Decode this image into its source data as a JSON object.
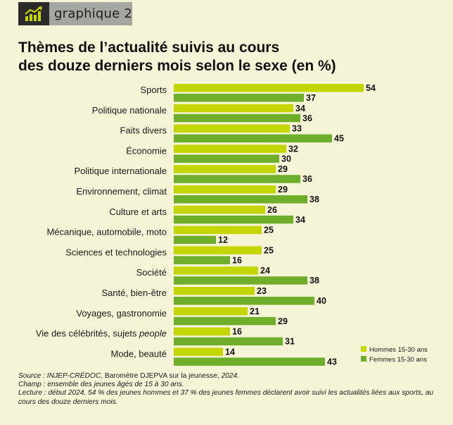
{
  "header": {
    "label": "graphique 2"
  },
  "title": {
    "line1": "Thèmes de l’actualité suivis au cours",
    "line2": "des douze derniers mois selon le sexe (en %)"
  },
  "colors": {
    "hommes": "#c3d600",
    "femmes": "#6fae2a",
    "icon": "#c3d600"
  },
  "chart_data": {
    "type": "bar",
    "orientation": "horizontal",
    "categories": [
      "Sports",
      "Politique nationale",
      "Faits divers",
      "Économie",
      "Politique internationale",
      "Environnement, climat",
      "Culture et arts",
      "Mécanique, automobile, moto",
      "Sciences et technologies",
      "Société",
      "Santé, bien-être",
      "Voyages, gastronomie",
      "Vie des célébrités, sujets people",
      "Mode, beauté"
    ],
    "series": [
      {
        "name": "Hommes 15-30 ans",
        "values": [
          54,
          34,
          33,
          32,
          29,
          29,
          26,
          25,
          25,
          24,
          23,
          21,
          16,
          14
        ]
      },
      {
        "name": "Femmes 15-30 ans",
        "values": [
          37,
          36,
          45,
          30,
          36,
          38,
          34,
          12,
          16,
          38,
          40,
          29,
          31,
          43
        ]
      }
    ],
    "xlim": [
      0,
      54
    ],
    "legend": "bottom-right",
    "grid": false
  },
  "notes": {
    "source_prefix": "Source : INJEP-CRÉDOC,",
    "source_text": " Baromètre DJEPVA sur la jeunesse, ",
    "source_year": "2024.",
    "champ": "Champ : ensemble des jeunes âgés de 15 à 30 ans.",
    "lecture": "Lecture : début 2024, 54 % des jeunes hommes et 37 % des jeunes femmes déclarent avoir suivi les actualités liées aux sports, au cours des douze derniers mois."
  }
}
